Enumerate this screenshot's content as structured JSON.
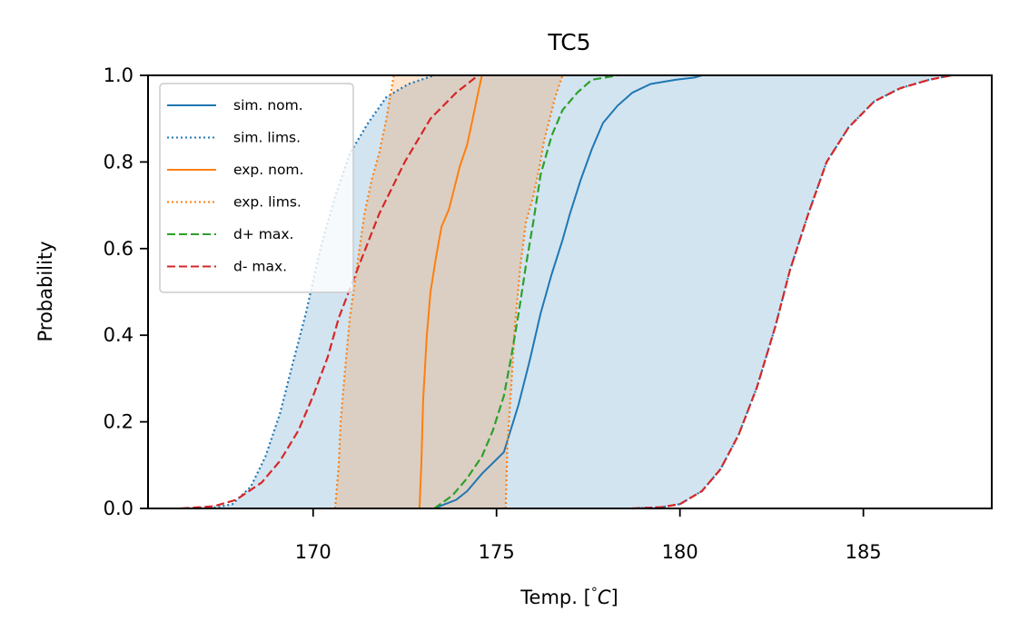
{
  "chart_data": {
    "type": "line",
    "title": "TC5",
    "xlabel": "Temp. [°C]",
    "xlabel_main": "Temp. [",
    "xlabel_deg": "°",
    "xlabel_unit": "C",
    "xlabel_close": "]",
    "ylabel": "Probability",
    "xlim": [
      165.5,
      188.5
    ],
    "ylim": [
      0,
      1
    ],
    "xticks": [
      170,
      175,
      180,
      185
    ],
    "yticks": [
      0.0,
      0.2,
      0.4,
      0.6,
      0.8,
      1.0
    ],
    "xtick_labels": [
      "170",
      "175",
      "180",
      "185"
    ],
    "ytick_labels": [
      "0.0",
      "0.2",
      "0.4",
      "0.6",
      "0.8",
      "1.0"
    ],
    "grid": false,
    "legend_position": "top-left",
    "colors": {
      "sim": "#1f77b4",
      "exp": "#ff7f0e",
      "dplus": "#2ca02c",
      "dminus": "#d62728",
      "sim_band": "#1f77b4",
      "exp_band": "#ff7f0e"
    },
    "series": [
      {
        "name": "sim. nom.",
        "style": "solid",
        "color": "#1f77b4",
        "x": [
          173.3,
          173.6,
          173.9,
          174.2,
          174.6,
          175.2,
          175.6,
          175.9,
          176.2,
          176.5,
          176.8,
          177.0,
          177.3,
          177.6,
          177.9,
          178.3,
          178.7,
          179.2,
          179.9,
          180.4,
          180.6
        ],
        "y": [
          0.0,
          0.01,
          0.02,
          0.04,
          0.08,
          0.13,
          0.24,
          0.34,
          0.45,
          0.54,
          0.62,
          0.68,
          0.76,
          0.83,
          0.89,
          0.93,
          0.96,
          0.98,
          0.99,
          0.995,
          1.0
        ]
      },
      {
        "name": "sim. lims.",
        "style": "dotted",
        "color": "#1f77b4",
        "lower": {
          "x": [
            166.8,
            167.4,
            167.8,
            168.3,
            168.7,
            169.1,
            169.4,
            169.8,
            170.2,
            170.6,
            171.0,
            171.5,
            172.0,
            172.6,
            173.3
          ],
          "y": [
            0.0,
            0.003,
            0.01,
            0.05,
            0.12,
            0.22,
            0.32,
            0.45,
            0.6,
            0.72,
            0.82,
            0.89,
            0.95,
            0.98,
            1.0
          ]
        },
        "upper": {
          "x": [
            178.7,
            179.5,
            180.0,
            180.6,
            181.1,
            181.6,
            182.1,
            182.6,
            183.0,
            183.5,
            184.0,
            184.6,
            185.3,
            186.0,
            186.8,
            187.4
          ],
          "y": [
            0.0,
            0.003,
            0.01,
            0.04,
            0.09,
            0.17,
            0.28,
            0.42,
            0.55,
            0.68,
            0.8,
            0.88,
            0.94,
            0.97,
            0.99,
            1.0
          ]
        }
      },
      {
        "name": "exp. nom.",
        "style": "solid",
        "color": "#ff7f0e",
        "x": [
          172.9,
          172.95,
          173.0,
          173.1,
          173.2,
          173.35,
          173.5,
          173.7,
          173.85,
          174.0,
          174.2,
          174.35,
          174.5,
          174.6
        ],
        "y": [
          0.0,
          0.1,
          0.25,
          0.4,
          0.5,
          0.58,
          0.65,
          0.69,
          0.74,
          0.79,
          0.84,
          0.9,
          0.96,
          1.0
        ]
      },
      {
        "name": "exp. lims.",
        "style": "dotted",
        "color": "#ff7f0e",
        "lower": {
          "x": [
            170.6,
            170.7,
            170.75,
            170.85,
            171.0,
            171.2,
            171.4,
            171.6,
            171.8,
            172.0,
            172.1,
            172.2
          ],
          "y": [
            0.0,
            0.1,
            0.2,
            0.3,
            0.44,
            0.56,
            0.68,
            0.76,
            0.82,
            0.9,
            0.95,
            1.0
          ]
        },
        "upper": {
          "x": [
            175.25,
            175.3,
            175.4,
            175.5,
            175.65,
            175.8,
            176.0,
            176.15,
            176.3,
            176.45,
            176.6,
            176.8
          ],
          "y": [
            0.0,
            0.15,
            0.28,
            0.42,
            0.56,
            0.66,
            0.72,
            0.78,
            0.85,
            0.9,
            0.95,
            1.0
          ]
        }
      },
      {
        "name": "d+ max.",
        "style": "dashed",
        "color": "#2ca02c",
        "x": [
          173.3,
          173.8,
          174.2,
          174.6,
          174.9,
          175.2,
          175.4,
          175.6,
          175.8,
          176.0,
          176.2,
          176.5,
          176.8,
          177.2,
          177.6,
          178.3
        ],
        "y": [
          0.0,
          0.03,
          0.07,
          0.12,
          0.18,
          0.26,
          0.35,
          0.45,
          0.56,
          0.66,
          0.77,
          0.86,
          0.92,
          0.96,
          0.99,
          1.0
        ]
      },
      {
        "name": "d- max.",
        "style": "dashed",
        "color": "#d62728",
        "x": [
          166.4,
          167.3,
          167.9,
          168.6,
          169.1,
          169.6,
          170.0,
          170.4,
          170.7,
          171.2,
          171.8,
          172.5,
          173.2,
          173.9,
          174.5
        ],
        "y": [
          0.0,
          0.005,
          0.02,
          0.06,
          0.11,
          0.18,
          0.26,
          0.35,
          0.44,
          0.55,
          0.68,
          0.8,
          0.9,
          0.96,
          1.0
        ]
      },
      {
        "name": "d- max. (upper)",
        "style": "dashed",
        "color": "#d62728",
        "in_legend": false,
        "x": [
          178.7,
          179.5,
          180.0,
          180.6,
          181.1,
          181.6,
          182.1,
          182.6,
          183.0,
          183.5,
          184.0,
          184.6,
          185.3,
          186.0,
          186.8,
          187.4
        ],
        "y": [
          0.0,
          0.003,
          0.01,
          0.04,
          0.09,
          0.17,
          0.28,
          0.42,
          0.55,
          0.68,
          0.8,
          0.88,
          0.94,
          0.97,
          0.99,
          1.0
        ]
      }
    ],
    "legend": [
      {
        "label": "sim. nom.",
        "color": "#1f77b4",
        "style": "solid"
      },
      {
        "label": "sim. lims.",
        "color": "#1f77b4",
        "style": "dotted"
      },
      {
        "label": "exp. nom.",
        "color": "#ff7f0e",
        "style": "solid"
      },
      {
        "label": "exp. lims.",
        "color": "#ff7f0e",
        "style": "dotted"
      },
      {
        "label": "d+ max.",
        "color": "#2ca02c",
        "style": "dashed"
      },
      {
        "label": "d- max.",
        "color": "#d62728",
        "style": "dashed"
      }
    ]
  }
}
